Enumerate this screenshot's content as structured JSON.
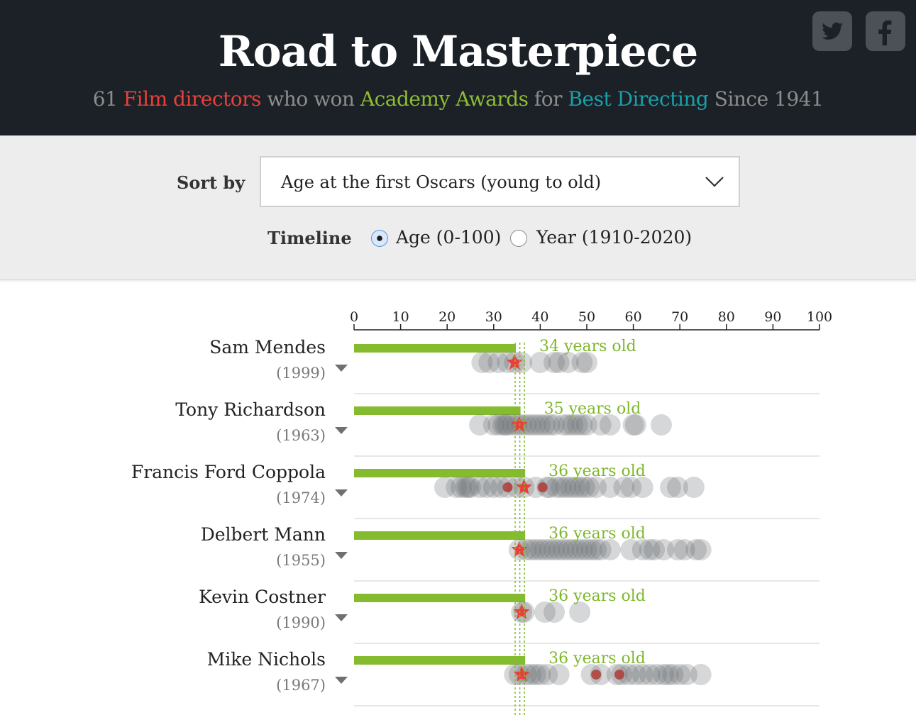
{
  "header": {
    "title": "Road to Masterpiece",
    "subtitle": {
      "count": "61",
      "part1": "Film directors",
      "part2": "who won",
      "part3": "Academy Awards",
      "part4": "for",
      "part5": "Best Directing",
      "part6": "Since 1941"
    },
    "colors": {
      "background": "#1b2127",
      "title": "#ffffff",
      "muted": "#8c8c8c",
      "film_directors": "#e8403a",
      "academy_awards": "#8dbc33",
      "best_directing": "#1aa0a8"
    },
    "share_icons": [
      "twitter-icon",
      "facebook-icon"
    ]
  },
  "controls": {
    "sort_label": "Sort by",
    "sort_value": "Age at the first Oscars (young to old)",
    "timeline_label": "Timeline",
    "timeline_options": [
      {
        "label": "Age (0-100)",
        "checked": true
      },
      {
        "label": "Year (1910-2020)",
        "checked": false
      }
    ]
  },
  "chart_data": {
    "type": "scatter",
    "x_axis": {
      "min": 0,
      "max": 100,
      "ticks": [
        0,
        10,
        20,
        30,
        40,
        50,
        60,
        70,
        80,
        90,
        100
      ]
    },
    "colors": {
      "bar": "#84bb2f",
      "film_dot": "#6b6f73",
      "oscar_star": "#e8403a",
      "other_award": "#b03a36"
    },
    "directors": [
      {
        "name": "Sam Mendes",
        "year": "(1999)",
        "first_oscar_age": 34,
        "label": "34 years old",
        "films_age": [
          27.5,
          29,
          31,
          33,
          34.5,
          36,
          40,
          43,
          44,
          46,
          49,
          50
        ],
        "oscar_ages": [
          34.5
        ],
        "other_award_ages": []
      },
      {
        "name": "Tony Richardson",
        "year": "(1963)",
        "first_oscar_age": 35,
        "label": "35 years old",
        "films_age": [
          27,
          30,
          31,
          32,
          32.5,
          33,
          34,
          35,
          36,
          37,
          38,
          39,
          40,
          41,
          42,
          43,
          45,
          46,
          47,
          48,
          49,
          50,
          53,
          55,
          60,
          60.5,
          66
        ],
        "oscar_ages": [
          35.5
        ],
        "other_award_ages": []
      },
      {
        "name": "Francis Ford Coppola",
        "year": "(1974)",
        "first_oscar_age": 36,
        "label": "36 years old",
        "films_age": [
          19.5,
          22,
          23,
          24,
          24.5,
          25,
          27,
          28.5,
          30,
          31.5,
          33,
          35,
          36.5,
          39,
          41.5,
          42,
          43.5,
          44.5,
          45.5,
          46.5,
          47.5,
          48.5,
          49.5,
          50.5,
          52,
          55,
          58,
          59.5,
          62,
          68,
          69.5,
          73
        ],
        "oscar_ages": [
          36.5
        ],
        "other_award_ages": [
          33,
          40.5
        ]
      },
      {
        "name": "Delbert Mann",
        "year": "(1955)",
        "first_oscar_age": 36,
        "label": "36 years old",
        "films_age": [
          35.5,
          37,
          38,
          39,
          40,
          41,
          42,
          43,
          44,
          45,
          46,
          47,
          48,
          49,
          50,
          51,
          52,
          53,
          55,
          59.5,
          62,
          63.5,
          64.5,
          66.5,
          69.5,
          71,
          73.5,
          74.5
        ],
        "oscar_ages": [
          35.5
        ],
        "other_award_ages": []
      },
      {
        "name": "Kevin Costner",
        "year": "(1990)",
        "first_oscar_age": 36,
        "label": "36 years old",
        "films_age": [
          36,
          36.5,
          41,
          43,
          48.5
        ],
        "oscar_ages": [
          36
        ],
        "other_award_ages": []
      },
      {
        "name": "Mike Nichols",
        "year": "(1967)",
        "first_oscar_age": 36,
        "label": "36 years old",
        "films_age": [
          34.5,
          35.5,
          37,
          38,
          39,
          40,
          41.5,
          44,
          51,
          53,
          56.5,
          57.5,
          59,
          60.5,
          62,
          63.5,
          65,
          66.5,
          67.5,
          68.5,
          70,
          71.5,
          74.5
        ],
        "oscar_ages": [
          36
        ],
        "other_award_ages": [
          52,
          57
        ]
      }
    ]
  }
}
